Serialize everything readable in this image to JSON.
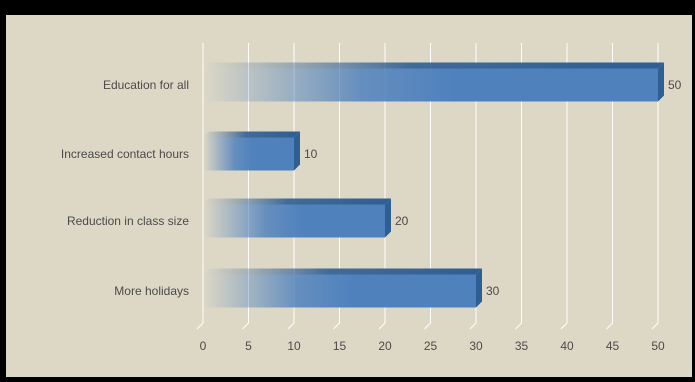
{
  "chart_data": {
    "type": "bar",
    "orientation": "horizontal",
    "categories": [
      "Education for all",
      "Increased contact hours",
      "Reduction in class size",
      "More holidays"
    ],
    "values": [
      50,
      10,
      20,
      30
    ],
    "title": "",
    "xlabel": "",
    "ylabel": "",
    "xlim": [
      0,
      50
    ],
    "ticks": [
      "0",
      "5",
      "10",
      "15",
      "20",
      "25",
      "30",
      "35",
      "40",
      "45",
      "50"
    ],
    "data_labels": [
      "50",
      "10",
      "20",
      "30"
    ],
    "grid": "vertical",
    "legend": "none",
    "colors": {
      "bar": "#4f81bd",
      "bar_top": "#2f5e93",
      "background": "#ddd8c6",
      "frame": "#000000",
      "gridline": "#ffffff"
    }
  }
}
